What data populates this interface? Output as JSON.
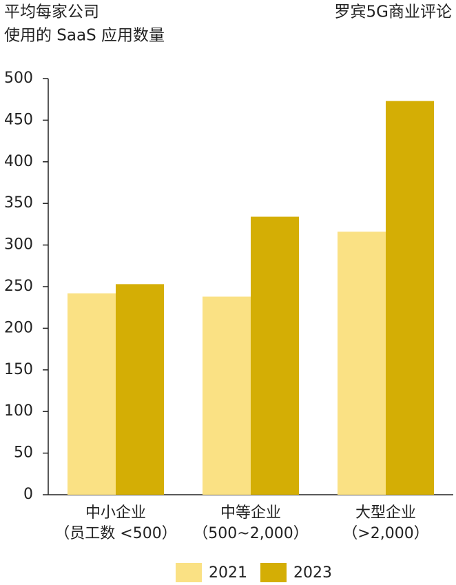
{
  "chart_data": {
    "type": "bar",
    "title": [
      "平均每家公司",
      "使用的 SaaS 应用数量"
    ],
    "source": "罗宾5G商业评论",
    "categories": [
      [
        "中小企业",
        "（员工数 <500）"
      ],
      [
        "中等企业",
        "（500~2,000）"
      ],
      [
        "大型企业",
        "（>2,000）"
      ]
    ],
    "series": [
      {
        "name": "2021",
        "color": "#fae184",
        "values": [
          242,
          238,
          316
        ]
      },
      {
        "name": "2023",
        "color": "#d4ae05",
        "values": [
          253,
          334,
          473
        ]
      }
    ],
    "ylim": [
      0,
      500
    ],
    "yticks": [
      0,
      50,
      100,
      150,
      200,
      250,
      300,
      350,
      400,
      450,
      500
    ],
    "grid": false,
    "legend": "bottom"
  }
}
